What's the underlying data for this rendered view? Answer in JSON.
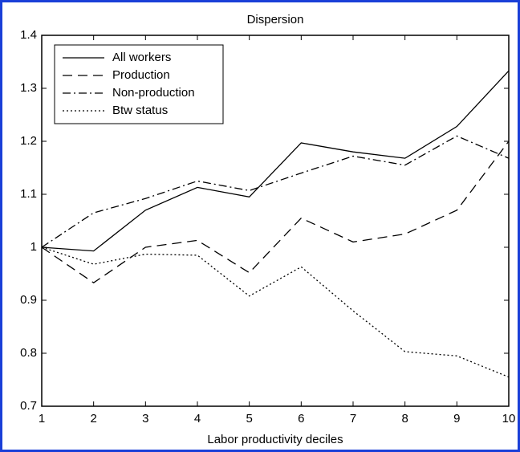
{
  "chart_data": {
    "type": "line",
    "title": "Dispersion",
    "xlabel": "Labor productivity deciles",
    "x": [
      1,
      2,
      3,
      4,
      5,
      6,
      7,
      8,
      9,
      10
    ],
    "series": [
      {
        "name": "All workers",
        "color": "#000000",
        "linestyle": "solid",
        "values": [
          1,
          0.993,
          1.07,
          1.113,
          1.095,
          1.197,
          1.18,
          1.168,
          1.228,
          1.333
        ]
      },
      {
        "name": "Production",
        "color": "#000000",
        "linestyle": "dashed",
        "values": [
          1,
          0.933,
          1.0,
          1.013,
          0.952,
          1.055,
          1.01,
          1.025,
          1.07,
          1.2
        ]
      },
      {
        "name": "Non-production",
        "color": "#000000",
        "linestyle": "dashdot",
        "values": [
          1,
          1.065,
          1.092,
          1.125,
          1.107,
          1.14,
          1.172,
          1.155,
          1.21,
          1.168
        ]
      },
      {
        "name": "Btw status",
        "color": "#000000",
        "linestyle": "dotted",
        "values": [
          1,
          0.968,
          0.987,
          0.985,
          0.908,
          0.963,
          0.88,
          0.803,
          0.795,
          0.755
        ]
      }
    ],
    "xlim": [
      1,
      10
    ],
    "xticks": [
      1,
      2,
      3,
      4,
      5,
      6,
      7,
      8,
      9,
      10
    ],
    "ylim": [
      0.7,
      1.4
    ],
    "yticks": [
      0.7,
      0.8,
      0.9,
      1,
      1.1,
      1.2,
      1.3,
      1.4
    ],
    "legend": "upper left",
    "grid": false
  }
}
